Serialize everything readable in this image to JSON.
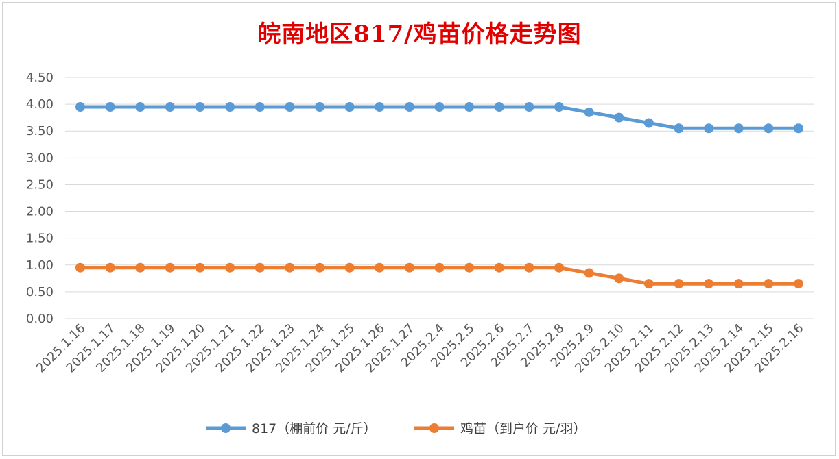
{
  "chart_data": {
    "type": "line",
    "title": "皖南地区817/鸡苗价格走势图",
    "categories": [
      "2025.1.16",
      "2025.1.17",
      "2025.1.18",
      "2025.1.19",
      "2025.1.20",
      "2025.1.21",
      "2025.1.22",
      "2025.1.23",
      "2025.1.24",
      "2025.1.25",
      "2025.1.26",
      "2025.1.27",
      "2025.2.4",
      "2025.2.5",
      "2025.2.6",
      "2025.2.7",
      "2025.2.8",
      "2025.2.9",
      "2025.2.10",
      "2025.2.11",
      "2025.2.12",
      "2025.2.13",
      "2025.2.14",
      "2025.2.15",
      "2025.2.16"
    ],
    "series": [
      {
        "name": "817（棚前价 元/斤）",
        "color": "#5b9bd5",
        "values": [
          3.95,
          3.95,
          3.95,
          3.95,
          3.95,
          3.95,
          3.95,
          3.95,
          3.95,
          3.95,
          3.95,
          3.95,
          3.95,
          3.95,
          3.95,
          3.95,
          3.95,
          3.85,
          3.75,
          3.65,
          3.55,
          3.55,
          3.55,
          3.55,
          3.55
        ]
      },
      {
        "name": "鸡苗（到户价 元/羽）",
        "color": "#ed7d31",
        "values": [
          0.95,
          0.95,
          0.95,
          0.95,
          0.95,
          0.95,
          0.95,
          0.95,
          0.95,
          0.95,
          0.95,
          0.95,
          0.95,
          0.95,
          0.95,
          0.95,
          0.95,
          0.85,
          0.75,
          0.65,
          0.65,
          0.65,
          0.65,
          0.65,
          0.65
        ]
      }
    ],
    "ylim": [
      0,
      4.5
    ],
    "yticks": [
      "0.00",
      "0.50",
      "1.00",
      "1.50",
      "2.00",
      "2.50",
      "3.00",
      "3.50",
      "4.00",
      "4.50"
    ],
    "grid": true,
    "legend_position": "bottom"
  }
}
